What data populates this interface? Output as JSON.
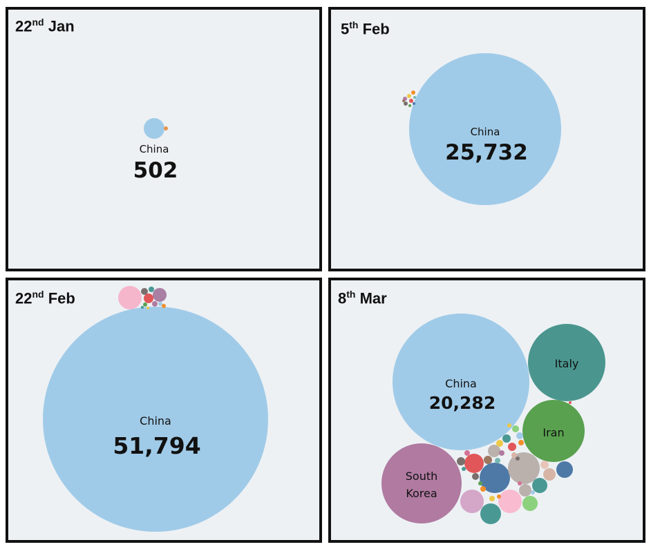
{
  "chart_data": [
    {
      "type": "bubble",
      "title": {
        "day": "22",
        "suffix": "nd",
        "month": "Jan"
      },
      "bubbles": [
        {
          "label": "China",
          "value": "502",
          "color": "#a0cbe8"
        }
      ]
    },
    {
      "type": "bubble",
      "title": {
        "day": "5",
        "suffix": "th",
        "month": "Feb"
      },
      "bubbles": [
        {
          "label": "China",
          "value": "25,732",
          "color": "#a0cbe8"
        }
      ]
    },
    {
      "type": "bubble",
      "title": {
        "day": "22",
        "suffix": "nd",
        "month": "Feb"
      },
      "bubbles": [
        {
          "label": "China",
          "value": "51,794",
          "color": "#a0cbe8"
        }
      ]
    },
    {
      "type": "bubble",
      "title": {
        "day": "8",
        "suffix": "th",
        "month": "Mar"
      },
      "bubbles": [
        {
          "label": "China",
          "value": "20,282",
          "color": "#a0cbe8"
        },
        {
          "label": "Italy",
          "value": "",
          "color": "#4a968f"
        },
        {
          "label": "Iran",
          "value": "",
          "color": "#59a14f"
        },
        {
          "label": "South Korea",
          "value": "",
          "color": "#b07aa1"
        }
      ]
    }
  ]
}
